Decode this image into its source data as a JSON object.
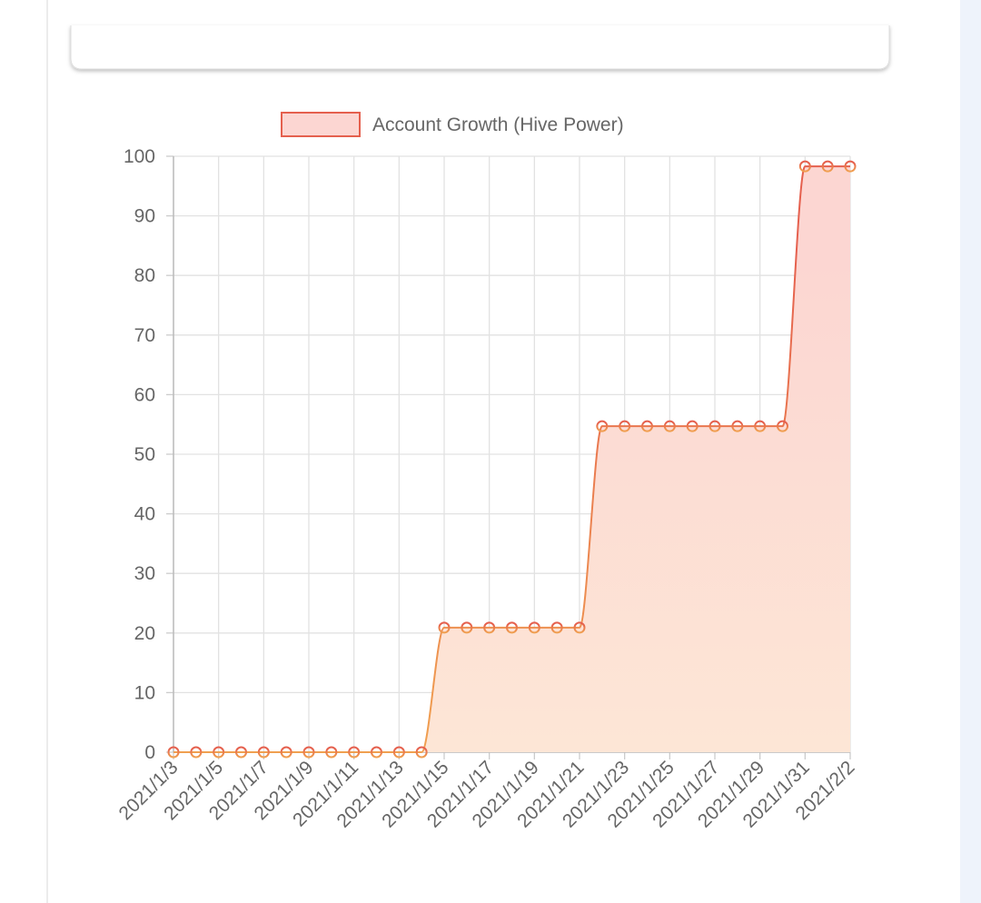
{
  "chart_data": {
    "type": "line",
    "categories": [
      "2021/1/3",
      null,
      "2021/1/5",
      null,
      "2021/1/7",
      null,
      "2021/1/9",
      null,
      "2021/1/11",
      null,
      "2021/1/13",
      null,
      "2021/1/15",
      null,
      "2021/1/17",
      null,
      "2021/1/19",
      null,
      "2021/1/21",
      null,
      "2021/1/23",
      null,
      "2021/1/25",
      null,
      "2021/1/27",
      null,
      "2021/1/29",
      null,
      "2021/1/31",
      null,
      "2021/2/2"
    ],
    "series": [
      {
        "name": "Account Growth (Hive Power)",
        "color": [
          "#e5604e",
          "#f0a050"
        ],
        "fill": [
          "#fcd6d2",
          "#fde6d6"
        ],
        "values": [
          0,
          0,
          0,
          0,
          0,
          0,
          0,
          0,
          0,
          0,
          0,
          0,
          20.9,
          20.9,
          20.9,
          20.9,
          20.9,
          20.9,
          20.9,
          54.7,
          54.7,
          54.7,
          54.7,
          54.7,
          54.7,
          54.7,
          54.7,
          54.7,
          98.3,
          98.3,
          98.3
        ]
      }
    ],
    "ylim": [
      0,
      100
    ],
    "yticks": [
      0,
      10,
      20,
      30,
      40,
      50,
      60,
      70,
      80,
      90,
      100
    ],
    "grid": true,
    "legend": "top"
  }
}
